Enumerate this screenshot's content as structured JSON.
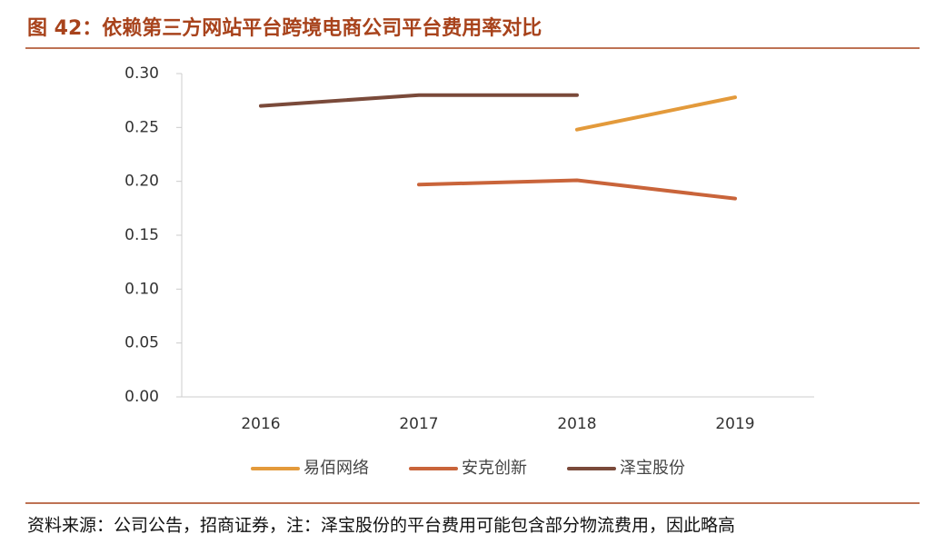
{
  "chart_data": {
    "type": "line",
    "title": "图 42：依赖第三方网站平台跨境电商公司平台费用率对比",
    "categories": [
      "2016",
      "2017",
      "2018",
      "2019"
    ],
    "series": [
      {
        "name": "易佰网络",
        "color": "#e39a3b",
        "values": [
          null,
          null,
          0.248,
          0.278
        ]
      },
      {
        "name": "安克创新",
        "color": "#c9643a",
        "values": [
          null,
          0.197,
          0.201,
          0.184
        ]
      },
      {
        "name": "泽宝股份",
        "color": "#7a4a3a",
        "values": [
          0.27,
          0.28,
          0.28,
          null
        ]
      }
    ],
    "ylim": [
      0,
      0.3
    ],
    "yticks": [
      {
        "value": 0,
        "label": "0.00"
      },
      {
        "value": 0.05,
        "label": "0.05"
      },
      {
        "value": 0.1,
        "label": "0.10"
      },
      {
        "value": 0.15,
        "label": "0.15"
      },
      {
        "value": 0.2,
        "label": "0.20"
      },
      {
        "value": 0.25,
        "label": "0.25"
      },
      {
        "value": 0.3,
        "label": "0.30"
      }
    ],
    "source": "资料来源：公司公告，招商证券，注：泽宝股份的平台费用可能包含部分物流费用，因此略高"
  }
}
